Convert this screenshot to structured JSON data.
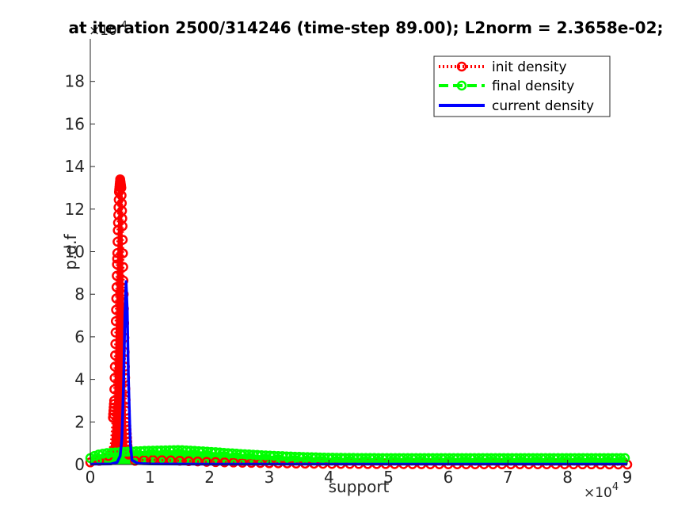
{
  "chart_data": {
    "type": "line",
    "title": "at iteration 2500/314246 (time-step  89.00); L2norm = 2.3658e-02;",
    "xlabel": "support",
    "ylabel": "p.d.f",
    "x_multiplier_label": "×10",
    "x_multiplier_exp": "4",
    "y_multiplier_label": "×10",
    "y_multiplier_exp": "-4",
    "xlim": [
      0,
      90000
    ],
    "ylim": [
      0,
      0.0002
    ],
    "xticks": [
      0,
      10000,
      20000,
      30000,
      40000,
      50000,
      60000,
      70000,
      80000,
      90000
    ],
    "xtick_labels": [
      "0",
      "1",
      "2",
      "3",
      "4",
      "5",
      "6",
      "7",
      "8",
      "9"
    ],
    "yticks": [
      0,
      2e-05,
      4e-05,
      6e-05,
      8e-05,
      0.0001,
      0.00012,
      0.00014,
      0.00016,
      0.00018
    ],
    "ytick_labels": [
      "0",
      "2",
      "4",
      "6",
      "8",
      "10",
      "12",
      "14",
      "16",
      "18"
    ],
    "legend_position": "top-right",
    "series": [
      {
        "name": "init density",
        "color": "#ff0000",
        "style": "dotted",
        "marker": "circle",
        "x": [
          0,
          2000,
          3000,
          3500,
          4000,
          4300,
          4600,
          4800,
          5000,
          5200,
          5400,
          5600,
          5800,
          6000,
          6300,
          6600,
          7000,
          8000,
          10000,
          15000,
          20000,
          30000,
          40000,
          50000,
          60000,
          70000,
          80000,
          90000
        ],
        "y": [
          1e-06,
          2e-06,
          4e-06,
          1e-05,
          3e-05,
          7e-05,
          0.00011,
          0.000128,
          0.000134,
          0.00013,
          0.000112,
          8e-05,
          4.6e-05,
          2e-05,
          6e-06,
          2e-06,
          1.5e-06,
          2e-06,
          2.2e-06,
          1.8e-06,
          1.2e-06,
          6e-07,
          3e-07,
          2e-07,
          1e-07,
          1e-07,
          1e-07,
          0
        ]
      },
      {
        "name": "final density",
        "color": "#00ff00",
        "style": "dashed",
        "marker": "circle",
        "x": [
          0,
          1000,
          3000,
          6000,
          10000,
          15000,
          20000,
          25000,
          30000,
          35000,
          40000,
          50000,
          60000,
          70000,
          80000,
          90000
        ],
        "y": [
          3e-06,
          4.5e-06,
          5.5e-06,
          6e-06,
          6.5e-06,
          6.8e-06,
          6e-06,
          5e-06,
          4.2e-06,
          3.6e-06,
          3.2e-06,
          3e-06,
          3e-06,
          3e-06,
          3e-06,
          3e-06
        ]
      },
      {
        "name": "current density",
        "color": "#0000ff",
        "style": "solid",
        "marker": "none",
        "x": [
          0,
          3500,
          4500,
          5000,
          5300,
          5600,
          5800,
          6000,
          6200,
          6400,
          6700,
          7000,
          8000,
          10000,
          20000,
          30000,
          40000,
          50000,
          60000,
          70000,
          80000,
          90000
        ],
        "y": [
          2e-07,
          3e-07,
          1e-06,
          4e-06,
          1.2e-05,
          4e-05,
          7e-05,
          8.6e-05,
          7.2e-05,
          4e-05,
          1e-05,
          2e-06,
          5e-07,
          3e-07,
          2e-07,
          2e-07,
          2e-07,
          2e-07,
          2e-07,
          2e-07,
          2e-07,
          2e-07
        ]
      }
    ]
  }
}
